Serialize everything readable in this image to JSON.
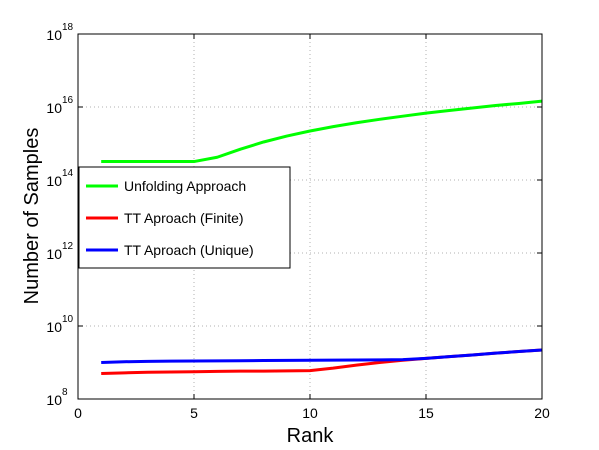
{
  "chart_data": {
    "type": "line",
    "title": "",
    "xlabel": "Rank",
    "ylabel": "Number of Samples",
    "xlim": [
      0,
      20
    ],
    "ylim_exponent": [
      8,
      18
    ],
    "y_scale": "log",
    "grid": true,
    "legend_position": "left",
    "x_ticks": [
      "0",
      "5",
      "10",
      "15",
      "20"
    ],
    "y_ticks": [
      {
        "base": "10",
        "exp": "8"
      },
      {
        "base": "10",
        "exp": "10"
      },
      {
        "base": "10",
        "exp": "12"
      },
      {
        "base": "10",
        "exp": "14"
      },
      {
        "base": "10",
        "exp": "16"
      },
      {
        "base": "10",
        "exp": "18"
      }
    ],
    "series": [
      {
        "name": "Unfolding Approach",
        "color": "#00ff00",
        "x": [
          1,
          2,
          3,
          4,
          5,
          6,
          7,
          8,
          9,
          10,
          11,
          12,
          13,
          14,
          15,
          16,
          17,
          18,
          19,
          20
        ],
        "y": [
          320000000000000.0,
          320000000000000.0,
          320000000000000.0,
          320000000000000.0,
          320000000000000.0,
          420000000000000.0,
          700000000000000.0,
          1100000000000000.0,
          1600000000000000.0,
          2200000000000000.0,
          2900000000000000.0,
          3700000000000000.0,
          4600000000000000.0,
          5600000000000000.0,
          6800000000000000.0,
          8000000000000000.0,
          9400000000000000.0,
          1.1e+16,
          1.25e+16,
          1.45e+16
        ]
      },
      {
        "name": "TT Aproach (Finite)",
        "color": "#ff0000",
        "x": [
          1,
          2,
          3,
          4,
          5,
          6,
          7,
          8,
          9,
          10,
          11,
          12,
          13,
          14,
          15,
          16,
          17,
          18,
          19,
          20
        ],
        "y": [
          500000000.0,
          520000000.0,
          540000000.0,
          550000000.0,
          560000000.0,
          570000000.0,
          580000000.0,
          580000000.0,
          590000000.0,
          600000000.0,
          700000000.0,
          850000000.0,
          1000000000.0,
          1150000000.0,
          1300000000.0,
          1450000000.0,
          1600000000.0,
          1800000000.0,
          2000000000.0,
          2200000000.0
        ]
      },
      {
        "name": "TT Aproach (Unique)",
        "color": "#0000ff",
        "x": [
          1,
          2,
          3,
          4,
          5,
          6,
          7,
          8,
          9,
          10,
          11,
          12,
          13,
          14,
          15,
          16,
          17,
          18,
          19,
          20
        ],
        "y": [
          1000000000.0,
          1050000000.0,
          1070000000.0,
          1090000000.0,
          1100000000.0,
          1110000000.0,
          1120000000.0,
          1130000000.0,
          1140000000.0,
          1150000000.0,
          1160000000.0,
          1170000000.0,
          1180000000.0,
          1200000000.0,
          1300000000.0,
          1450000000.0,
          1600000000.0,
          1800000000.0,
          2000000000.0,
          2200000000.0
        ]
      }
    ]
  }
}
